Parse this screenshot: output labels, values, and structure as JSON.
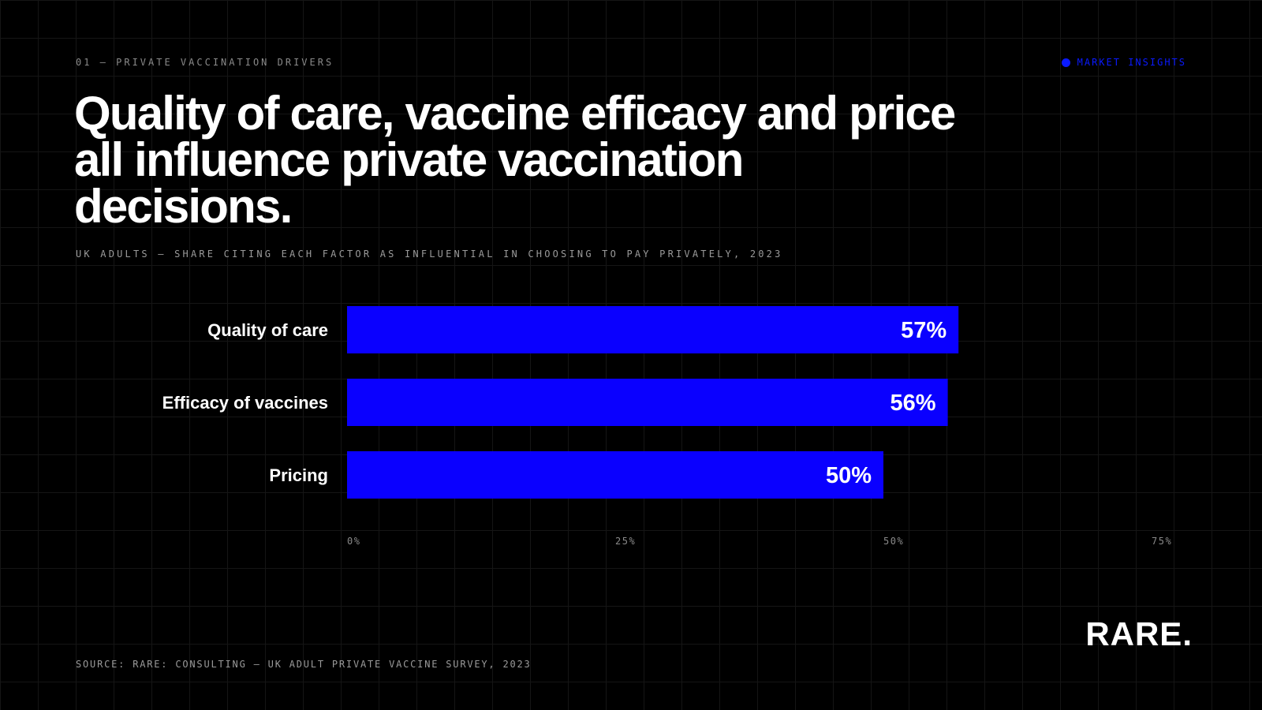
{
  "header": {
    "kicker": "01 — PRIVATE VACCINATION DRIVERS",
    "tag": "MARKET INSIGHTS",
    "tag_color": "#0a1aff"
  },
  "title": "Quality of care, vaccine efficacy and price all influence private vaccination decisions.",
  "subtitle": "UK ADULTS — SHARE CITING EACH FACTOR AS INFLUENTIAL IN CHOOSING TO PAY PRIVATELY, 2023",
  "footer": {
    "source": "SOURCE: RARE: CONSULTING — UK ADULT PRIVATE VACCINE SURVEY, 2023",
    "logo": "RARE."
  },
  "colors": {
    "background": "#000000",
    "bar": "#0a00ff",
    "bar_label": "#ffffff",
    "category_label": "#ffffff",
    "tick_label": "#8a8a8a"
  },
  "chart_data": {
    "type": "bar",
    "orientation": "horizontal",
    "categories": [
      "Quality of care",
      "Efficacy of vaccines",
      "Pricing"
    ],
    "values": [
      57,
      56,
      50
    ],
    "value_labels": [
      "57%",
      "56%",
      "50%"
    ],
    "unit": "%",
    "xlim": [
      0,
      75
    ],
    "xticks": [
      0,
      25,
      50,
      75
    ],
    "xtick_labels": [
      "0%",
      "25%",
      "50%",
      "75%"
    ],
    "grid": true,
    "legend": "none"
  }
}
